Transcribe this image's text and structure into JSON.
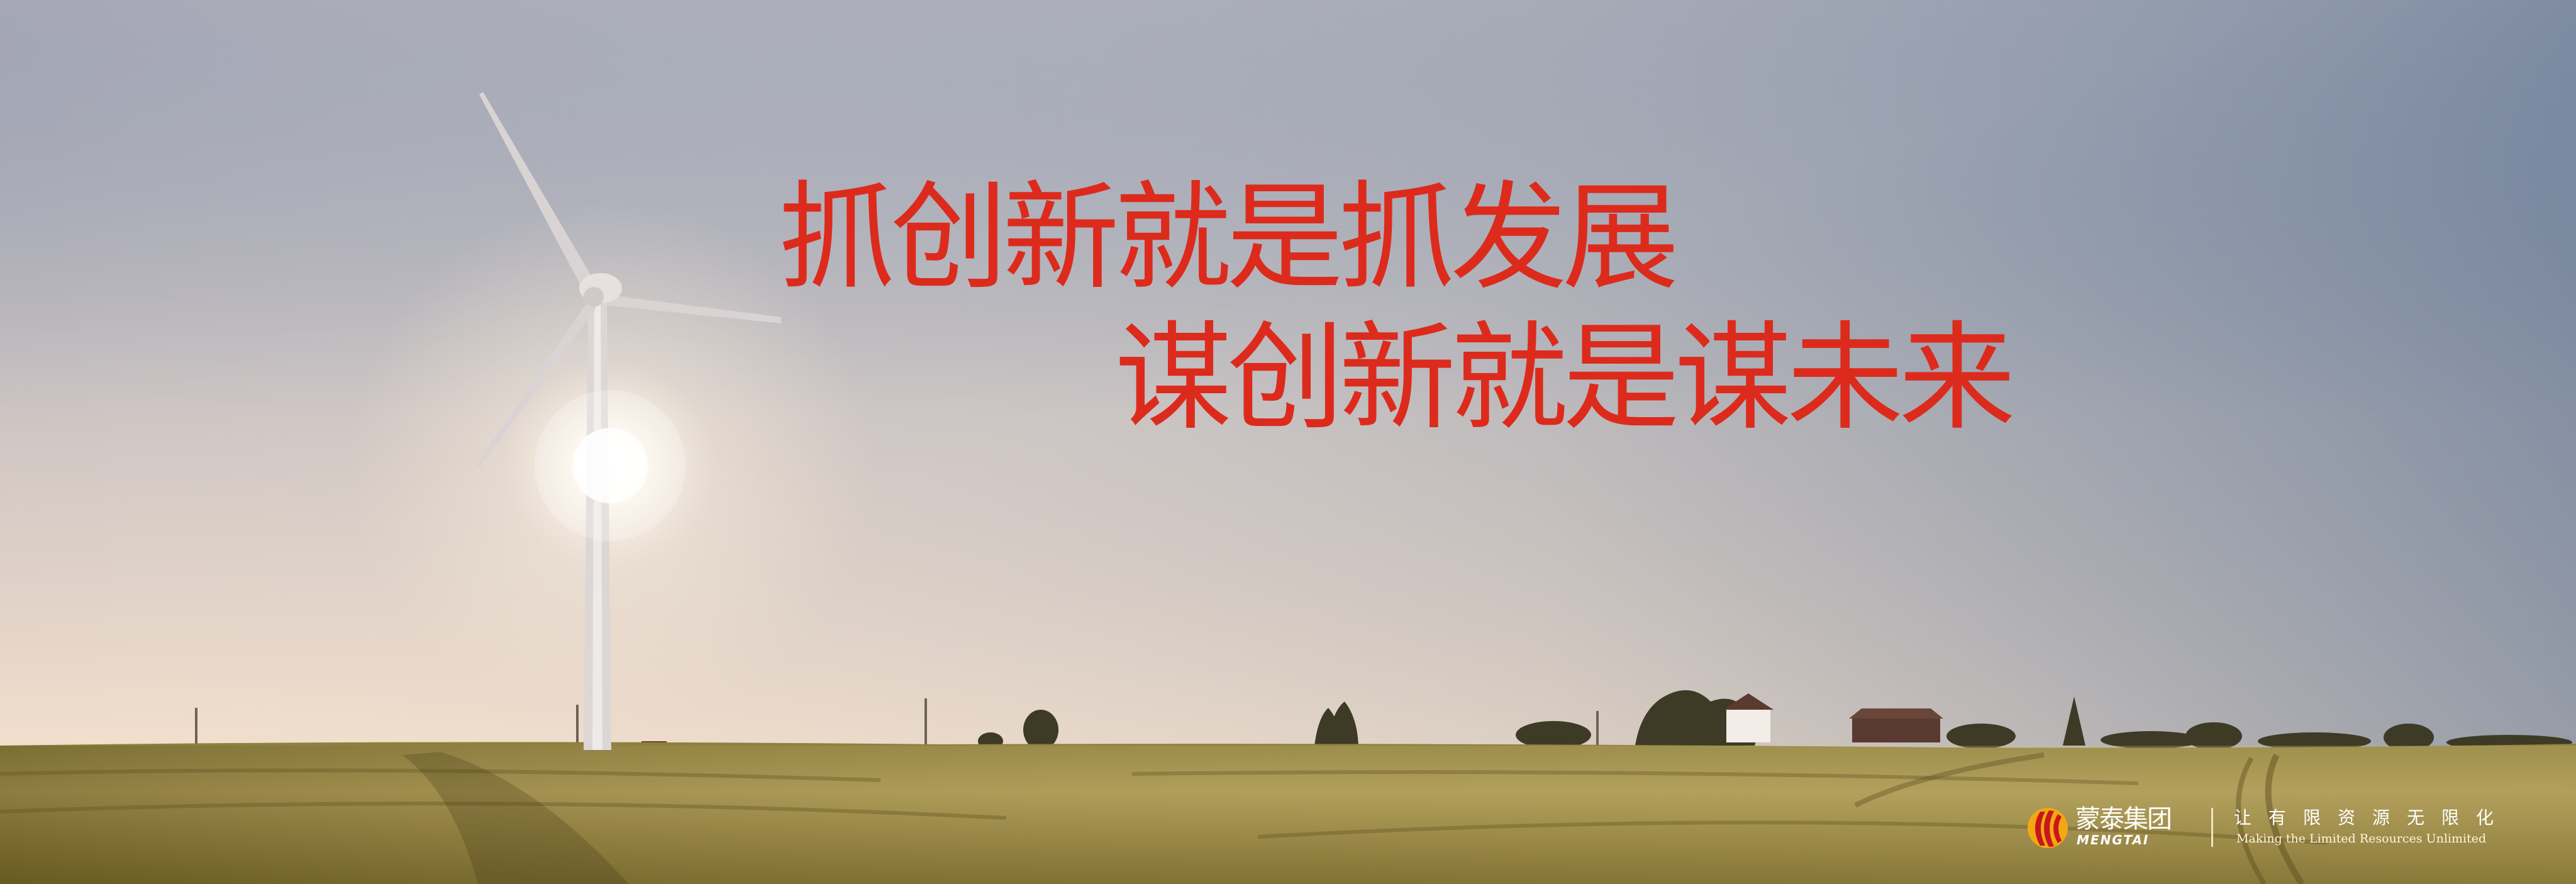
{
  "headline": {
    "line1": "抓创新就是抓发展",
    "line2": "谋创新就是谋未来",
    "color": "#dc2b1c"
  },
  "brand": {
    "name_cn": "蒙泰集团",
    "name_en": "MENGTAI",
    "slogan_cn": "让有限资源无限化",
    "slogan_en": "Making the Limited Resources Unlimited",
    "logo_colors": [
      "#c8161d",
      "#f3a712"
    ]
  },
  "scene": {
    "sky_top": "#6a7e95",
    "sky_horizon": "#f1dcc7",
    "field": "#8c7f3b"
  }
}
